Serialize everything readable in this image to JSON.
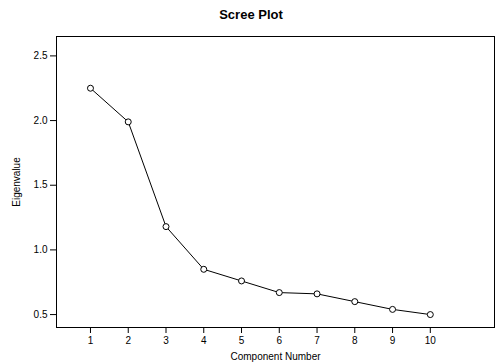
{
  "chart_data": {
    "type": "line",
    "title": "Scree Plot",
    "x_label": "Component Number",
    "y_label": "Eigenvalue",
    "x": [
      1,
      2,
      3,
      4,
      5,
      6,
      7,
      8,
      9,
      10
    ],
    "values": [
      2.25,
      1.99,
      1.18,
      0.85,
      0.76,
      0.67,
      0.66,
      0.6,
      0.54,
      0.5
    ],
    "color": "#000000",
    "marker": "circle",
    "line_style": "solid",
    "xlim": [
      0.1,
      11.7
    ],
    "xticks": [
      1,
      2,
      3,
      4,
      5,
      6,
      7,
      8,
      9,
      10
    ],
    "ylim": [
      0.4,
      2.65
    ],
    "yticks": [
      0.5,
      {
        "value": 1,
        "label": "1.0"
      },
      1.5,
      {
        "value": 2,
        "label": "2.0"
      },
      2.5
    ],
    "grid": false
  }
}
